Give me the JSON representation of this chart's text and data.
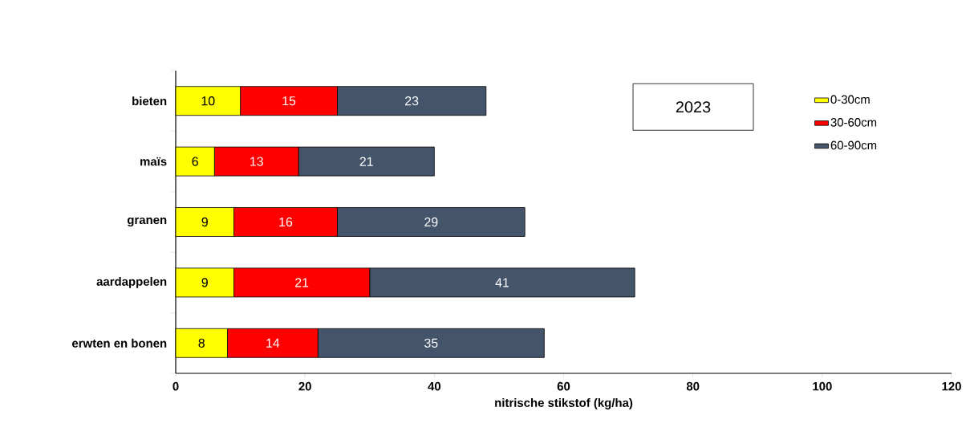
{
  "chart_data": {
    "type": "bar",
    "orientation": "horizontal",
    "stacked": true,
    "data_labels": true,
    "legend": "top right",
    "categories": [
      "bieten",
      "maïs",
      "granen",
      "aardappelen",
      "erwten en bonen"
    ],
    "series": [
      {
        "name": "0-30cm",
        "color": "#ffff00",
        "values": [
          10,
          6,
          9,
          9,
          8
        ]
      },
      {
        "name": "30-60cm",
        "color": "#ff0000",
        "values": [
          15,
          13,
          16,
          21,
          14
        ]
      },
      {
        "name": "60-90cm",
        "color": "#44546a",
        "values": [
          23,
          21,
          29,
          41,
          35
        ]
      }
    ],
    "xlabel": "nitrische stikstof (kg/ha)",
    "xlim": [
      0,
      120
    ],
    "xticks": [
      0,
      20,
      40,
      60,
      80,
      100,
      120
    ],
    "annotations": [
      "2023"
    ]
  }
}
